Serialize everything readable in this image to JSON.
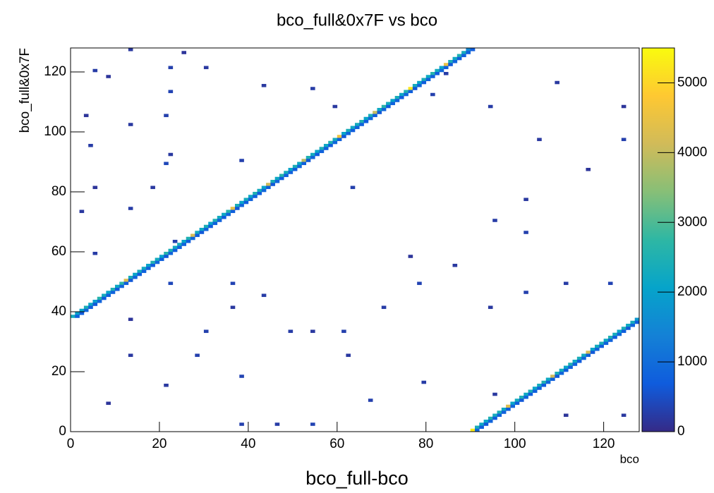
{
  "chart_data": {
    "type": "heatmap",
    "title": "bco_full&0x7F vs bco",
    "x_label": "bco",
    "y_label": "bco_full&0x7F",
    "caption": "bco_full-bco",
    "xlim": [
      0,
      128
    ],
    "ylim": [
      0,
      128
    ],
    "xticks": [
      0,
      20,
      40,
      60,
      80,
      100,
      120
    ],
    "yticks": [
      0,
      20,
      40,
      60,
      80,
      100,
      120
    ],
    "zlim": [
      0,
      5500
    ],
    "zticks": [
      0,
      1000,
      2000,
      3000,
      4000,
      5000
    ],
    "palette": [
      "#352a87",
      "#0f5cdd",
      "#1481d6",
      "#06a4ca",
      "#2eb7a4",
      "#87bf77",
      "#d1bb59",
      "#fec832",
      "#f9fb0e"
    ],
    "cells": {
      "x": [
        0,
        1,
        2,
        3,
        4,
        5,
        6,
        7,
        8,
        9,
        10,
        11,
        12,
        13,
        14,
        15,
        16,
        17,
        18,
        19,
        20,
        21,
        22,
        23,
        24,
        25,
        26,
        27,
        28,
        29,
        30,
        31,
        32,
        33,
        34,
        35,
        36,
        37,
        38,
        39,
        40,
        41,
        42,
        43,
        44,
        45,
        46,
        47,
        48,
        49,
        50,
        51,
        52,
        53,
        54,
        55,
        56,
        57,
        58,
        59,
        60,
        61,
        62,
        63,
        64,
        65,
        66,
        67,
        68,
        69,
        70,
        71,
        72,
        73,
        74,
        75,
        76,
        77,
        78,
        79,
        80,
        81,
        82,
        83,
        84,
        85,
        86,
        87,
        88,
        89,
        90,
        91,
        92,
        93,
        94,
        95,
        96,
        97,
        98,
        99,
        100,
        101,
        102,
        103,
        104,
        105,
        106,
        107,
        108,
        109,
        110,
        111,
        112,
        113,
        114,
        115,
        116,
        117,
        118,
        119,
        120,
        121,
        122,
        123,
        124,
        125,
        126,
        127,
        1,
        2,
        3,
        4,
        5,
        6,
        7,
        8,
        9,
        10,
        11,
        12,
        13,
        14,
        15,
        16,
        17,
        18,
        19,
        20,
        21,
        22,
        23,
        24,
        25,
        26,
        27,
        28,
        29,
        30,
        31,
        32,
        33,
        34,
        35,
        36,
        37,
        38,
        39,
        40,
        41,
        42,
        43,
        44,
        45,
        46,
        47,
        48,
        49,
        50,
        51,
        52,
        53,
        54,
        55,
        56,
        57,
        58,
        59,
        60,
        61,
        62,
        63,
        64,
        65,
        66,
        67,
        68,
        69,
        70,
        71,
        72,
        73,
        74,
        75,
        76,
        77,
        78,
        79,
        80,
        81,
        82,
        83,
        84,
        85,
        86,
        87,
        88,
        89,
        90,
        91,
        92,
        93,
        94,
        95,
        96,
        97,
        98,
        99,
        100,
        101,
        102,
        103,
        104,
        105,
        106,
        107,
        108,
        109,
        110,
        111,
        112,
        113,
        114,
        115,
        116,
        117,
        118,
        119,
        120,
        121,
        122,
        123,
        124,
        125,
        126,
        127,
        13,
        25,
        5,
        22,
        30,
        8,
        22,
        43,
        54,
        3,
        21,
        13,
        4,
        22,
        21,
        38,
        18,
        5,
        13,
        2,
        23,
        5,
        22,
        36,
        36,
        13,
        30,
        49,
        13,
        28,
        38,
        21,
        8,
        38,
        46,
        54,
        62,
        61,
        70,
        78,
        94,
        102,
        111,
        121,
        105,
        124,
        116,
        102,
        95,
        102,
        86,
        76,
        124,
        111,
        67,
        79,
        95,
        84,
        81,
        109,
        124,
        59,
        94,
        63,
        54,
        43
      ],
      "y": [
        38,
        39,
        40,
        41,
        42,
        43,
        44,
        45,
        46,
        47,
        48,
        49,
        50,
        51,
        52,
        53,
        54,
        55,
        56,
        57,
        58,
        59,
        60,
        61,
        62,
        63,
        64,
        65,
        66,
        67,
        68,
        69,
        70,
        71,
        72,
        73,
        74,
        75,
        76,
        77,
        78,
        79,
        80,
        81,
        82,
        83,
        84,
        85,
        86,
        87,
        88,
        89,
        90,
        91,
        92,
        93,
        94,
        95,
        96,
        97,
        98,
        99,
        100,
        101,
        102,
        103,
        104,
        105,
        106,
        107,
        108,
        109,
        110,
        111,
        112,
        113,
        114,
        115,
        116,
        117,
        118,
        119,
        120,
        121,
        122,
        123,
        124,
        125,
        126,
        127,
        0,
        1,
        2,
        3,
        4,
        5,
        6,
        7,
        8,
        9,
        10,
        11,
        12,
        13,
        14,
        15,
        16,
        17,
        18,
        19,
        20,
        21,
        22,
        23,
        24,
        25,
        26,
        27,
        28,
        29,
        30,
        31,
        32,
        33,
        34,
        35,
        36,
        37,
        38,
        39,
        40,
        41,
        42,
        43,
        44,
        45,
        46,
        47,
        48,
        49,
        50,
        51,
        52,
        53,
        54,
        55,
        56,
        57,
        58,
        59,
        60,
        61,
        62,
        63,
        64,
        65,
        66,
        67,
        68,
        69,
        70,
        71,
        72,
        73,
        74,
        75,
        76,
        77,
        78,
        79,
        80,
        81,
        82,
        83,
        84,
        85,
        86,
        87,
        88,
        89,
        90,
        91,
        92,
        93,
        94,
        95,
        96,
        97,
        98,
        99,
        100,
        101,
        102,
        103,
        104,
        105,
        106,
        107,
        108,
        109,
        110,
        111,
        112,
        113,
        114,
        115,
        116,
        117,
        118,
        119,
        120,
        121,
        122,
        123,
        124,
        125,
        126,
        127,
        0,
        1,
        2,
        3,
        4,
        5,
        6,
        7,
        8,
        9,
        10,
        11,
        12,
        13,
        14,
        15,
        16,
        17,
        18,
        19,
        20,
        21,
        22,
        23,
        24,
        25,
        26,
        27,
        28,
        29,
        30,
        31,
        32,
        33,
        34,
        35,
        36,
        127,
        126,
        120,
        121,
        121,
        118,
        113,
        115,
        114,
        105,
        105,
        102,
        95,
        92,
        89,
        90,
        81,
        81,
        74,
        73,
        63,
        59,
        49,
        49,
        41,
        37,
        33,
        33,
        25,
        25,
        18,
        15,
        9,
        2,
        2,
        2,
        25,
        33,
        41,
        49,
        41,
        46,
        49,
        49,
        97,
        97,
        87,
        77,
        70,
        66,
        55,
        58,
        5,
        5,
        10,
        16,
        12,
        119,
        112,
        116,
        108,
        108,
        108,
        81,
        33,
        45
      ],
      "values": [
        2300,
        2000,
        2100,
        2400,
        2200,
        1900,
        2600,
        2300,
        2100,
        2500,
        2200,
        2700,
        4300,
        2400,
        2100,
        2300,
        2200,
        2000,
        2500,
        2300,
        2100,
        2600,
        2400,
        2200,
        2300,
        2100,
        2500,
        4200,
        2300,
        2200,
        2400,
        2100,
        2500,
        2300,
        2200,
        2600,
        4400,
        2400,
        2100,
        2300,
        2200,
        2500,
        2300,
        2100,
        4100,
        2400,
        2200,
        2600,
        2300,
        2100,
        2400,
        2200,
        3900,
        2500,
        2300,
        2100,
        2400,
        2200,
        2500,
        2300,
        4600,
        2100,
        2400,
        2200,
        2300,
        2500,
        2100,
        2400,
        4000,
        2200,
        2600,
        2300,
        2100,
        2400,
        2200,
        2500,
        5200,
        2300,
        2100,
        2400,
        2200,
        2600,
        2300,
        2100,
        4500,
        2400,
        2200,
        2500,
        2300,
        1500,
        5300,
        2400,
        2200,
        2100,
        2500,
        2300,
        2400,
        2200,
        4300,
        2100,
        2300,
        2500,
        2200,
        2400,
        2100,
        2300,
        2500,
        2200,
        4100,
        2400,
        2300,
        2100,
        2500,
        2200,
        2400,
        2300,
        4200,
        2100,
        2300,
        2400,
        2200,
        2500,
        2300,
        2100,
        2400,
        2200,
        2300,
        1800,
        800,
        700,
        900,
        750,
        650,
        850,
        700,
        800,
        800,
        700,
        900,
        750,
        650,
        850,
        700,
        800,
        800,
        700,
        900,
        750,
        650,
        850,
        700,
        800,
        800,
        700,
        900,
        750,
        650,
        850,
        700,
        800,
        800,
        700,
        900,
        750,
        650,
        850,
        700,
        800,
        800,
        700,
        900,
        750,
        650,
        850,
        700,
        800,
        800,
        700,
        900,
        750,
        650,
        850,
        700,
        800,
        800,
        700,
        900,
        750,
        650,
        850,
        700,
        800,
        800,
        700,
        900,
        750,
        650,
        850,
        700,
        800,
        800,
        700,
        900,
        750,
        650,
        850,
        700,
        800,
        800,
        700,
        900,
        750,
        650,
        850,
        700,
        800,
        800,
        700,
        900,
        750,
        650,
        850,
        700,
        800,
        800,
        700,
        900,
        750,
        650,
        850,
        700,
        800,
        800,
        700,
        900,
        750,
        650,
        850,
        700,
        800,
        800,
        700,
        900,
        750,
        650,
        850,
        700,
        800,
        800,
        700,
        900,
        750,
        650,
        850,
        700,
        200,
        150,
        250,
        300,
        200,
        150,
        350,
        200,
        250,
        150,
        300,
        200,
        250,
        200,
        400,
        300,
        200,
        150,
        250,
        200,
        300,
        250,
        400,
        350,
        200,
        150,
        300,
        250,
        200,
        300,
        350,
        200,
        150,
        300,
        250,
        350,
        200,
        300,
        250,
        350,
        200,
        300,
        250,
        350,
        200,
        300,
        150,
        200,
        250,
        300,
        200,
        150,
        200,
        150,
        300,
        250,
        200,
        250,
        300,
        200,
        150,
        200,
        250,
        300,
        200,
        250
      ]
    }
  }
}
